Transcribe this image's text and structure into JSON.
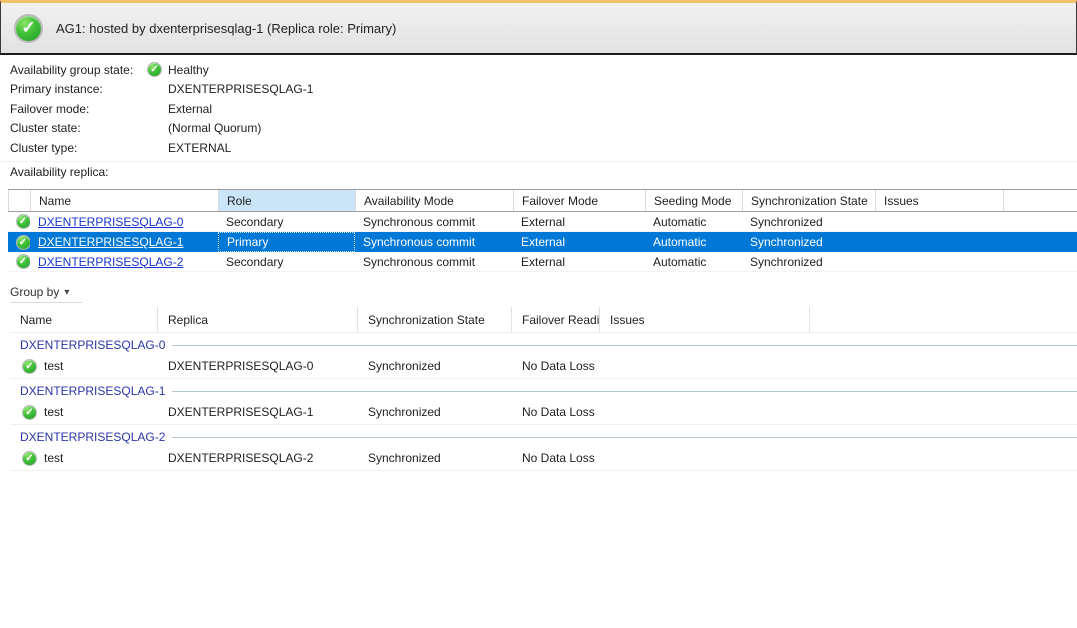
{
  "colors": {
    "accent_amber": "#f0c36a",
    "healthy_green": "#1d9e27",
    "selected_row_blue": "#0078d7",
    "sorted_column_blue": "#c9e5f7",
    "link_blue": "#1733d1",
    "group_title_blue": "#2b35a8"
  },
  "header": {
    "title": "AG1: hosted by dxenterprisesqlag-1 (Replica role: Primary)",
    "status_icon": "healthy-check-icon",
    "check_glyph": "✓"
  },
  "properties": {
    "rows": [
      {
        "label": "Availability group state:",
        "value": "Healthy",
        "has_icon": true
      },
      {
        "label": "Primary instance:",
        "value": "DXENTERPRISESQLAG-1",
        "has_icon": false
      },
      {
        "label": "Failover mode:",
        "value": "External",
        "has_icon": false
      },
      {
        "label": "Cluster state:",
        "value": "(Normal Quorum)",
        "has_icon": false
      },
      {
        "label": "Cluster type:",
        "value": "EXTERNAL",
        "has_icon": false
      }
    ]
  },
  "replica_table": {
    "section_label": "Availability replica:",
    "columns": [
      "Name",
      "Role",
      "Availability Mode",
      "Failover Mode",
      "Seeding Mode",
      "Synchronization State",
      "Issues"
    ],
    "sorted_column": "Role",
    "selected_row_index": 1,
    "rows": [
      {
        "status": "healthy",
        "name": "DXENTERPRISESQLAG-0",
        "role": "Secondary",
        "availability_mode": "Synchronous commit",
        "failover_mode": "External",
        "seeding_mode": "Automatic",
        "synchronization_state": "Synchronized",
        "issues": "",
        "selected": false
      },
      {
        "status": "healthy",
        "name": "DXENTERPRISESQLAG-1",
        "role": "Primary",
        "availability_mode": "Synchronous commit",
        "failover_mode": "External",
        "seeding_mode": "Automatic",
        "synchronization_state": "Synchronized",
        "issues": "",
        "selected": true
      },
      {
        "status": "healthy",
        "name": "DXENTERPRISESQLAG-2",
        "role": "Secondary",
        "availability_mode": "Synchronous commit",
        "failover_mode": "External",
        "seeding_mode": "Automatic",
        "synchronization_state": "Synchronized",
        "issues": "",
        "selected": false
      }
    ]
  },
  "group_by": {
    "label": "Group by",
    "caret": "▾"
  },
  "databases_table": {
    "columns": [
      "Name",
      "Replica",
      "Synchronization State",
      "Failover Readi...",
      "Issues"
    ],
    "groups": [
      {
        "title": "DXENTERPRISESQLAG-0",
        "rows": [
          {
            "status": "healthy",
            "name": "test",
            "replica": "DXENTERPRISESQLAG-0",
            "synchronization_state": "Synchronized",
            "failover_readiness": "No Data Loss",
            "issues": ""
          }
        ]
      },
      {
        "title": "DXENTERPRISESQLAG-1",
        "rows": [
          {
            "status": "healthy",
            "name": "test",
            "replica": "DXENTERPRISESQLAG-1",
            "synchronization_state": "Synchronized",
            "failover_readiness": "No Data Loss",
            "issues": ""
          }
        ]
      },
      {
        "title": "DXENTERPRISESQLAG-2",
        "rows": [
          {
            "status": "healthy",
            "name": "test",
            "replica": "DXENTERPRISESQLAG-2",
            "synchronization_state": "Synchronized",
            "failover_readiness": "No Data Loss",
            "issues": ""
          }
        ]
      }
    ]
  }
}
